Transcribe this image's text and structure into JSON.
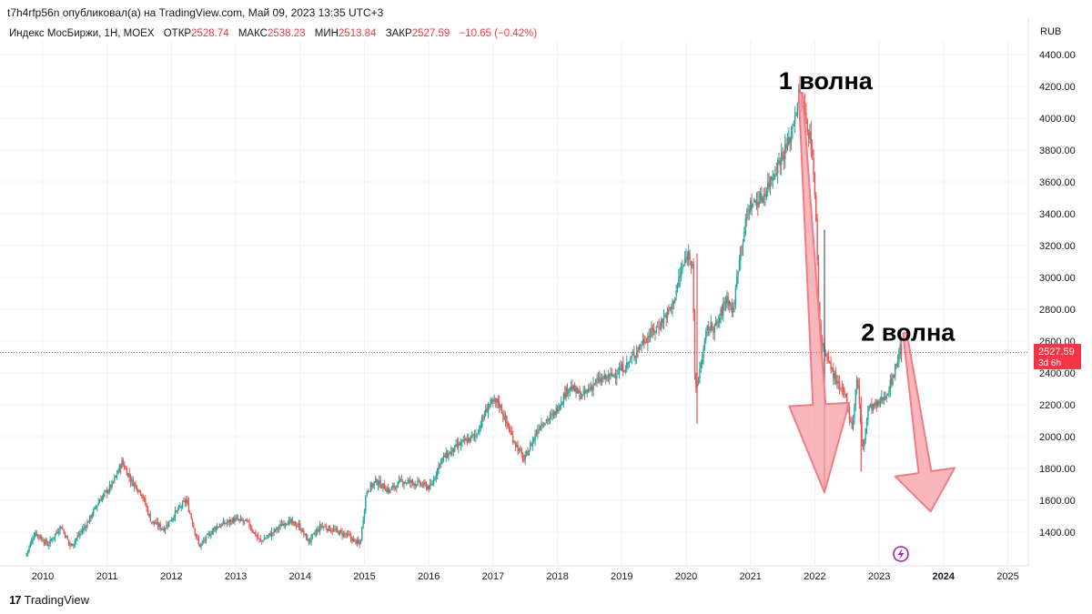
{
  "header": {
    "published": "t7h4rfp56n опубликовал(а) на TradingView.com, Май 09, 2023 13:35 UTC+3"
  },
  "legend": {
    "symbol": "Индекс МосБиржи, 1Н, MOEX",
    "open_label": "ОТКР",
    "open_value": "2528.74",
    "high_label": "МАКС",
    "high_value": "2538.23",
    "low_label": "МИН",
    "low_value": "2513.84",
    "close_label": "ЗАКР",
    "close_value": "2527.59",
    "change": "−10.65 (−0.42%)"
  },
  "currency": "RUB",
  "last_price": {
    "value": "2527.59",
    "countdown": "3d 6h"
  },
  "footer": {
    "brand": "TradingView"
  },
  "colors": {
    "up": "#26a69a",
    "down": "#ef5350",
    "arrow_fill": "#f7a1a8",
    "arrow_stroke": "#f07c86",
    "price_line": "#f23645"
  },
  "chart_data": {
    "type": "candlestick",
    "interval": "1W (chart header says 1Н)",
    "y_axis": {
      "min": 1200,
      "max": 4500,
      "ticks": [
        1400,
        1600,
        1800,
        2000,
        2200,
        2400,
        2600,
        2800,
        3000,
        3200,
        3400,
        3600,
        3800,
        4000,
        4200,
        4400
      ],
      "tick_labels": [
        "1400.00",
        "1600.00",
        "1800.00",
        "2000.00",
        "2200.00",
        "2400.00",
        "2600.00",
        "2800.00",
        "3000.00",
        "3200.00",
        "3400.00",
        "3600.00",
        "3800.00",
        "4000.00",
        "4200.00",
        "4400.00"
      ]
    },
    "x_axis": {
      "labels": [
        "2010",
        "2011",
        "2012",
        "2013",
        "2014",
        "2015",
        "2016",
        "2017",
        "2018",
        "2019",
        "2020",
        "2021",
        "2022",
        "2023",
        "2024",
        "2025"
      ],
      "bold_labels": [
        "2024"
      ]
    },
    "price_keypoints": [
      [
        2009.75,
        1250
      ],
      [
        2009.9,
        1400
      ],
      [
        2010.1,
        1320
      ],
      [
        2010.3,
        1440
      ],
      [
        2010.45,
        1310
      ],
      [
        2010.7,
        1450
      ],
      [
        2010.9,
        1600
      ],
      [
        2011.1,
        1700
      ],
      [
        2011.25,
        1840
      ],
      [
        2011.4,
        1720
      ],
      [
        2011.55,
        1650
      ],
      [
        2011.7,
        1470
      ],
      [
        2011.9,
        1420
      ],
      [
        2012.1,
        1530
      ],
      [
        2012.25,
        1600
      ],
      [
        2012.45,
        1310
      ],
      [
        2012.7,
        1430
      ],
      [
        2013.0,
        1480
      ],
      [
        2013.2,
        1460
      ],
      [
        2013.4,
        1340
      ],
      [
        2013.6,
        1400
      ],
      [
        2013.8,
        1470
      ],
      [
        2014.0,
        1440
      ],
      [
        2014.15,
        1340
      ],
      [
        2014.35,
        1440
      ],
      [
        2014.55,
        1410
      ],
      [
        2014.75,
        1380
      ],
      [
        2014.95,
        1320
      ],
      [
        2015.05,
        1660
      ],
      [
        2015.2,
        1720
      ],
      [
        2015.4,
        1660
      ],
      [
        2015.6,
        1720
      ],
      [
        2015.8,
        1710
      ],
      [
        2016.05,
        1680
      ],
      [
        2016.2,
        1850
      ],
      [
        2016.5,
        1950
      ],
      [
        2016.75,
        2010
      ],
      [
        2016.95,
        2200
      ],
      [
        2017.1,
        2220
      ],
      [
        2017.3,
        2010
      ],
      [
        2017.5,
        1850
      ],
      [
        2017.75,
        2080
      ],
      [
        2017.95,
        2130
      ],
      [
        2018.2,
        2320
      ],
      [
        2018.4,
        2250
      ],
      [
        2018.6,
        2340
      ],
      [
        2018.85,
        2380
      ],
      [
        2019.1,
        2450
      ],
      [
        2019.35,
        2600
      ],
      [
        2019.6,
        2700
      ],
      [
        2019.8,
        2820
      ],
      [
        2019.95,
        3050
      ],
      [
        2020.05,
        3150
      ],
      [
        2020.12,
        3100
      ],
      [
        2020.16,
        2250
      ],
      [
        2020.22,
        2400
      ],
      [
        2020.35,
        2680
      ],
      [
        2020.5,
        2700
      ],
      [
        2020.65,
        2880
      ],
      [
        2020.75,
        2780
      ],
      [
        2020.85,
        3150
      ],
      [
        2021.0,
        3450
      ],
      [
        2021.2,
        3500
      ],
      [
        2021.45,
        3720
      ],
      [
        2021.62,
        3850
      ],
      [
        2021.78,
        4160
      ],
      [
        2021.88,
        4000
      ],
      [
        2021.98,
        3800
      ],
      [
        2022.05,
        3250
      ],
      [
        2022.08,
        2780
      ],
      [
        2022.12,
        2600
      ],
      [
        2022.25,
        2450
      ],
      [
        2022.4,
        2300
      ],
      [
        2022.5,
        2250
      ],
      [
        2022.6,
        2050
      ],
      [
        2022.68,
        2400
      ],
      [
        2022.72,
        2150
      ],
      [
        2022.76,
        1900
      ],
      [
        2022.85,
        2180
      ],
      [
        2023.0,
        2200
      ],
      [
        2023.15,
        2280
      ],
      [
        2023.25,
        2400
      ],
      [
        2023.35,
        2560
      ],
      [
        2023.36,
        2527
      ]
    ],
    "annotations": [
      {
        "type": "text",
        "label": "1 волна",
        "x": 2021.75,
        "y": 4230
      },
      {
        "type": "text",
        "label": "2 волна",
        "x": 2023.03,
        "y": 2650
      },
      {
        "type": "arrow",
        "from": [
          2021.78,
          4160
        ],
        "to": [
          2022.15,
          1650
        ]
      },
      {
        "type": "arrow",
        "from": [
          2023.4,
          2650
        ],
        "to": [
          2023.8,
          1530
        ]
      }
    ]
  }
}
